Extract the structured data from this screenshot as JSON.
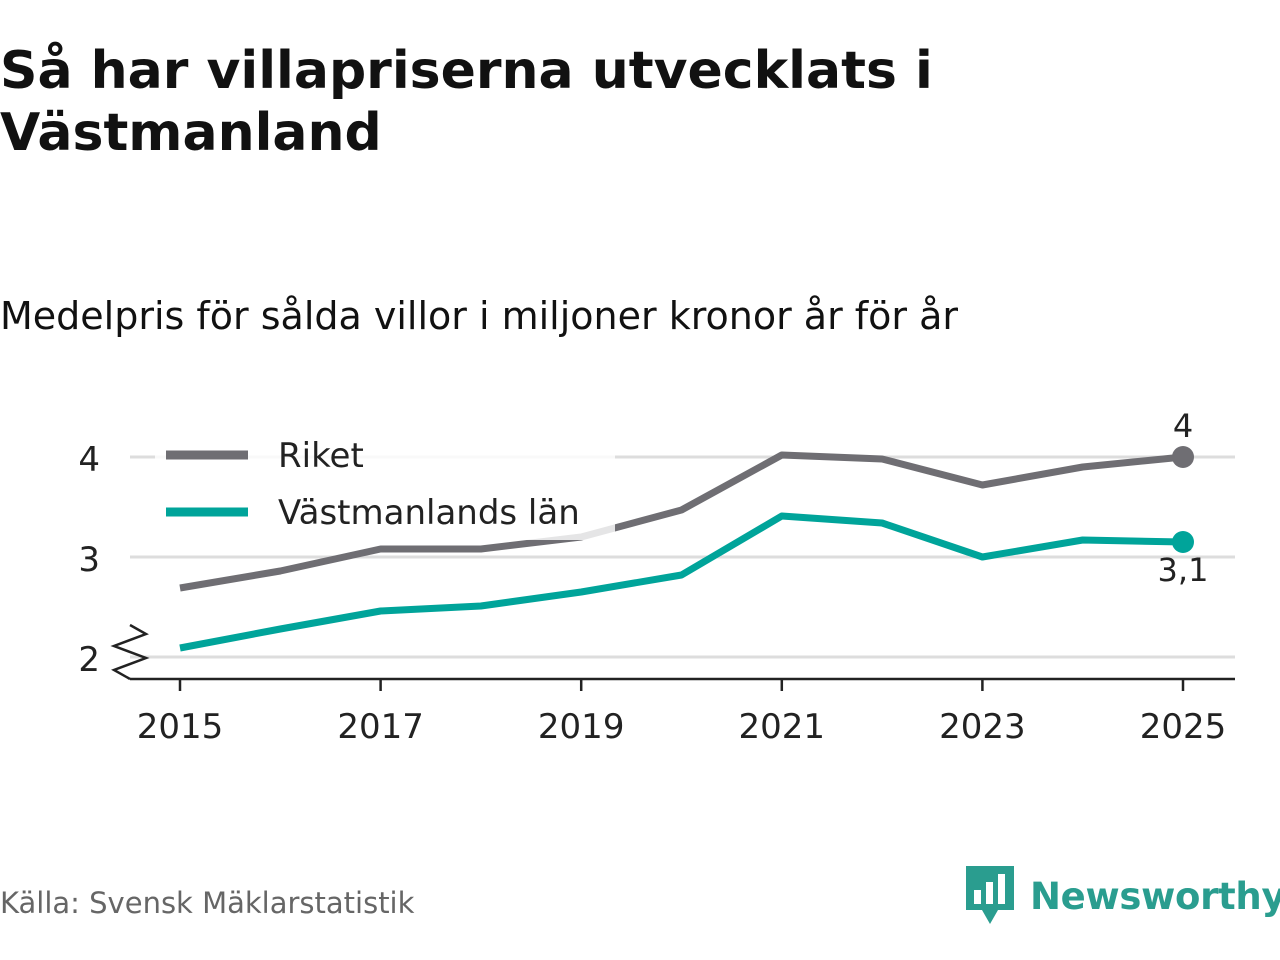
{
  "title": "Så har villapriserna utvecklats i Västmanland",
  "subtitle": "Medelpris för sålda villor i miljoner kronor år för år",
  "source": "Källa: Svensk Mäklarstatistik",
  "brand": {
    "name": "Newsworthy",
    "color": "#2a9d8f"
  },
  "colors": {
    "riket": "#6f6e73",
    "lan": "#00a49a",
    "grid": "#dddddd",
    "axis": "#222222"
  },
  "chart_data": {
    "type": "line",
    "x": [
      2015,
      2016,
      2017,
      2018,
      2019,
      2020,
      2021,
      2022,
      2023,
      2024,
      2025
    ],
    "x_ticks": [
      2015,
      2017,
      2019,
      2021,
      2023,
      2025
    ],
    "y_ticks": [
      2,
      3,
      4
    ],
    "ylim": [
      2,
      4.2
    ],
    "axis_break": true,
    "series": [
      {
        "name": "Riket",
        "color": "#6f6e73",
        "values": [
          2.69,
          2.86,
          3.08,
          3.08,
          3.2,
          3.47,
          4.02,
          3.98,
          3.72,
          3.9,
          4.0
        ],
        "end_label": "4"
      },
      {
        "name": "Västmanlands län",
        "color": "#00a49a",
        "values": [
          2.09,
          2.28,
          2.46,
          2.51,
          2.65,
          2.82,
          3.41,
          3.34,
          3.0,
          3.17,
          3.15
        ],
        "end_label": "3,1"
      }
    ],
    "legend": [
      "Riket",
      "Västmanlands län"
    ],
    "legend_position": "top-left"
  }
}
